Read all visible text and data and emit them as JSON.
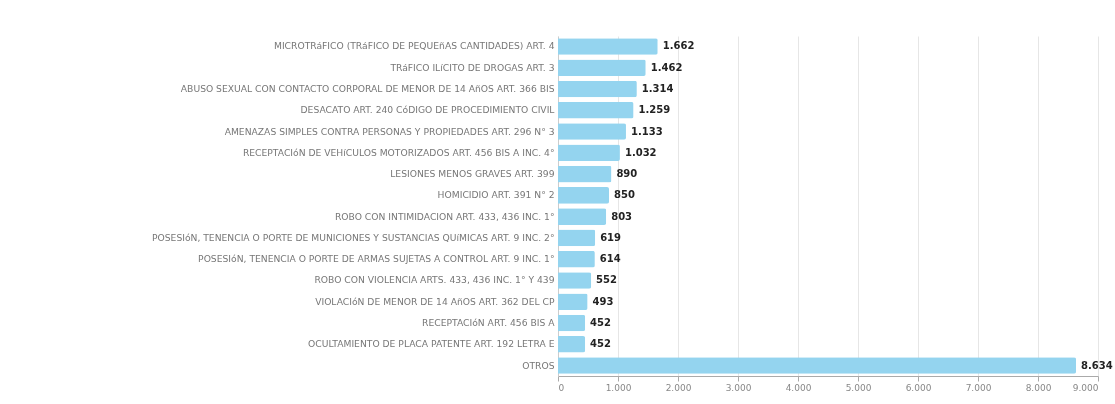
{
  "chart_data": {
    "type": "bar",
    "orientation": "horizontal",
    "categories": [
      "MICROTRáFICO (TRáFICO DE PEQUEñAS CANTIDADES) ART. 4",
      "TRáFICO ILíCITO DE DROGAS ART. 3",
      "ABUSO SEXUAL CON CONTACTO CORPORAL DE MENOR DE 14 AñOS ART. 366 BIS",
      "DESACATO ART. 240 CóDIGO DE PROCEDIMIENTO CIVIL",
      "AMENAZAS SIMPLES CONTRA PERSONAS Y PROPIEDADES ART. 296 N° 3",
      "RECEPTACIóN DE VEHíCULOS MOTORIZADOS ART. 456 BIS A INC. 4°",
      "LESIONES MENOS GRAVES ART. 399",
      "HOMICIDIO ART. 391 N° 2",
      "ROBO CON INTIMIDACION ART. 433, 436 INC. 1°",
      "POSESIóN, TENENCIA O PORTE DE MUNICIONES Y SUSTANCIAS QUíMICAS ART. 9 INC. 2°",
      "POSESIóN, TENENCIA O PORTE DE ARMAS SUJETAS A CONTROL ART. 9 INC. 1°",
      "ROBO CON VIOLENCIA ARTS. 433, 436 INC. 1° Y 439",
      "VIOLACIóN DE MENOR DE 14 AñOS ART. 362 DEL CP",
      "RECEPTACIóN ART. 456 BIS A",
      "OCULTAMIENTO DE PLACA PATENTE ART. 192 LETRA E",
      "OTROS"
    ],
    "values": [
      1662,
      1462,
      1314,
      1259,
      1133,
      1032,
      890,
      850,
      803,
      619,
      614,
      552,
      493,
      452,
      452,
      8634
    ],
    "value_labels": [
      "1.662",
      "1.462",
      "1.314",
      "1.259",
      "1.133",
      "1.032",
      "890",
      "850",
      "803",
      "619",
      "614",
      "552",
      "493",
      "452",
      "452",
      "8.634"
    ],
    "color": "#94d4ef",
    "xlim": [
      0,
      9000
    ],
    "xticks": [
      0,
      {
        "value": 1000,
        "label": "1.000"
      },
      {
        "value": 2000,
        "label": "2.000"
      },
      {
        "value": 3000,
        "label": "3.000"
      },
      {
        "value": 4000,
        "label": "4.000"
      },
      {
        "value": 5000,
        "label": "5.000"
      },
      {
        "value": 6000,
        "label": "6.000"
      },
      {
        "value": 7000,
        "label": "7.000"
      },
      {
        "value": 8000,
        "label": "8.000"
      },
      {
        "value": 9000,
        "label": "9.000"
      }
    ],
    "grid": "x"
  }
}
